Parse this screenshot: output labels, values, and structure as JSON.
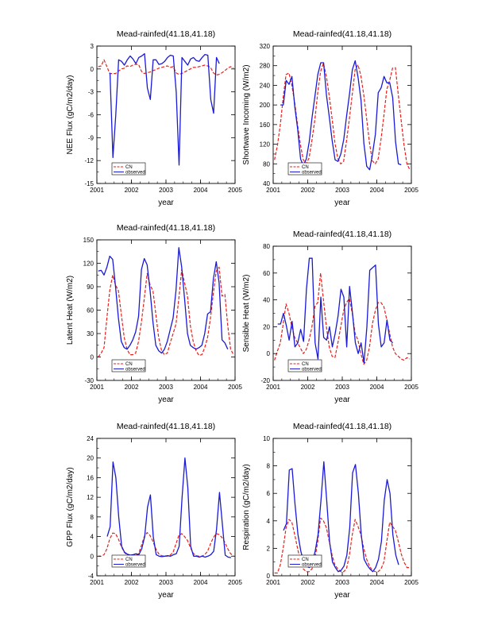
{
  "colors": {
    "cn": "#e8201a",
    "observed": "#1a1ad6",
    "axis": "#000000"
  },
  "chart_data": [
    {
      "type": "line",
      "title": "Mead-rainfed(41.18,41.18)",
      "xlabel": "year",
      "ylabel": "NEE Flux (gC/m2/day)",
      "ylim": [
        -15,
        3
      ],
      "yticks": [
        3,
        0,
        -3,
        -6,
        -9,
        -12,
        -15
      ],
      "xlim": [
        2001,
        2005
      ],
      "xticks": [
        2001,
        2002,
        2003,
        2004,
        2005
      ],
      "legend": {
        "location": "bottom-left",
        "entries": [
          "CN",
          "observed"
        ]
      },
      "series": [
        {
          "name": "CN",
          "style": "dashed",
          "x_start": 2001.04,
          "x_step": 0.0833,
          "values": [
            0.3,
            0.4,
            1.2,
            0.3,
            -0.6,
            -0.6,
            -0.6,
            -0.3,
            0.0,
            0.1,
            0.4,
            0.3,
            0.5,
            0.6,
            0.6,
            -0.3,
            -0.6,
            -0.5,
            -0.4,
            -0.2,
            -0.1,
            0.1,
            0.2,
            0.3,
            0.4,
            0.2,
            0.3,
            -0.5,
            -0.7,
            -0.6,
            -0.4,
            -0.2,
            0.0,
            0.2,
            0.2,
            0.3,
            0.4,
            0.5,
            0.4,
            0.2,
            -0.5,
            -0.8,
            -0.7,
            -0.5,
            -0.2,
            0.1,
            0.3,
            0.1
          ]
        },
        {
          "name": "observed",
          "style": "solid",
          "x_start": 2001.38,
          "x_step": 0.0833,
          "values": [
            -0.5,
            -11.6,
            -6.0,
            1.2,
            1.0,
            0.5,
            1.2,
            1.7,
            1.3,
            0.7,
            1.5,
            1.7,
            2.0,
            -2.5,
            -4.0,
            1.2,
            1.2,
            0.6,
            0.7,
            1.0,
            1.5,
            1.8,
            1.7,
            -3.0,
            -12.6,
            1.5,
            1.0,
            0.5,
            1.3,
            1.5,
            1.1,
            1.0,
            1.5,
            1.9,
            1.8,
            -4.0,
            -5.8,
            1.5,
            0.7
          ]
        }
      ]
    },
    {
      "type": "line",
      "title": "Mead-rainfed(41.18,41.18)",
      "xlabel": "year",
      "ylabel": "Shortwave Incoming (W/m2)",
      "ylim": [
        40,
        320
      ],
      "yticks": [
        320,
        280,
        240,
        200,
        160,
        120,
        80,
        40
      ],
      "xlim": [
        2001,
        2005
      ],
      "xticks": [
        2001,
        2002,
        2003,
        2004,
        2005
      ],
      "legend": {
        "location": "bottom-left",
        "entries": [
          "CN",
          "observed"
        ]
      },
      "series": [
        {
          "name": "CN",
          "style": "dashed",
          "x_start": 2001.04,
          "x_step": 0.0833,
          "values": [
            88,
            118,
            160,
            215,
            262,
            265,
            240,
            205,
            160,
            118,
            88,
            80,
            92,
            128,
            170,
            225,
            268,
            285,
            258,
            218,
            172,
            122,
            90,
            80,
            85,
            126,
            172,
            222,
            272,
            282,
            260,
            220,
            172,
            122,
            86,
            80,
            90,
            130,
            178,
            232,
            250,
            275,
            276,
            220,
            168,
            118,
            80,
            68
          ]
        },
        {
          "name": "observed",
          "style": "solid",
          "x_start": 2001.21,
          "x_step": 0.0833,
          "values": [
            200,
            200,
            250,
            242,
            258,
            195,
            150,
            90,
            76,
            90,
            125,
            175,
            218,
            262,
            286,
            286,
            220,
            175,
            126,
            88,
            85,
            100,
            130,
            178,
            222,
            272,
            290,
            255,
            210,
            122,
            75,
            68,
            100,
            140,
            225,
            235,
            258,
            245,
            245,
            215,
            125,
            80,
            78
          ]
        }
      ]
    },
    {
      "type": "line",
      "title": "Mead-rainfed(41.18,41.18)",
      "xlabel": "year",
      "ylabel": "Latent Heat (W/m2)",
      "ylim": [
        -30,
        150
      ],
      "yticks": [
        150,
        120,
        90,
        60,
        30,
        0,
        -30
      ],
      "xlim": [
        2001,
        2005
      ],
      "xticks": [
        2001,
        2002,
        2003,
        2004,
        2005
      ],
      "legend": {
        "location": "bottom-left",
        "entries": [
          "CN",
          "observed"
        ]
      },
      "series": [
        {
          "name": "CN",
          "style": "dashed",
          "x_start": 2001.04,
          "x_step": 0.0833,
          "values": [
            0,
            5,
            12,
            50,
            85,
            105,
            92,
            85,
            55,
            25,
            10,
            3,
            3,
            5,
            20,
            45,
            75,
            107,
            92,
            85,
            55,
            25,
            8,
            3,
            5,
            18,
            30,
            42,
            75,
            112,
            95,
            78,
            40,
            20,
            8,
            2,
            3,
            12,
            25,
            50,
            82,
            110,
            115,
            78,
            80,
            40,
            10,
            3
          ]
        },
        {
          "name": "observed",
          "style": "solid",
          "x_start": 2001.04,
          "x_step": 0.0833,
          "values": [
            110,
            111,
            105,
            115,
            129,
            125,
            90,
            50,
            20,
            12,
            10,
            15,
            22,
            32,
            52,
            112,
            126,
            118,
            85,
            45,
            15,
            8,
            5,
            10,
            20,
            35,
            50,
            85,
            140,
            115,
            75,
            30,
            15,
            12,
            10,
            12,
            15,
            30,
            55,
            58,
            100,
            122,
            95,
            22,
            18,
            10
          ]
        }
      ]
    },
    {
      "type": "line",
      "title": "Mead-rainfed(41.18,41.18)",
      "xlabel": "year",
      "ylabel": "Sensible Heat (W/m2)",
      "ylim": [
        -20,
        80
      ],
      "yticks": [
        80,
        60,
        40,
        20,
        0,
        -20
      ],
      "xlim": [
        2001,
        2005
      ],
      "xticks": [
        2001,
        2002,
        2003,
        2004,
        2005
      ],
      "legend": {
        "location": "bottom-left",
        "entries": [
          "CN",
          "observed"
        ]
      },
      "series": [
        {
          "name": "CN",
          "style": "dashed",
          "x_start": 2001.04,
          "x_step": 0.0833,
          "values": [
            -5,
            2,
            8,
            22,
            37,
            30,
            20,
            12,
            8,
            4,
            0,
            3,
            10,
            20,
            35,
            38,
            60,
            40,
            20,
            5,
            -2,
            -3,
            8,
            20,
            32,
            38,
            41,
            30,
            15,
            10,
            0,
            -8,
            -5,
            5,
            22,
            32,
            38,
            38,
            35,
            25,
            15,
            5,
            0,
            -2,
            -4,
            -5,
            -3,
            -4
          ]
        },
        {
          "name": "observed",
          "style": "solid",
          "x_start": 2001.13,
          "x_step": 0.0833,
          "values": [
            22,
            22,
            30,
            21,
            10,
            24,
            5,
            8,
            18,
            9,
            48,
            71,
            71,
            8,
            -4,
            42,
            12,
            10,
            20,
            5,
            15,
            28,
            48,
            42,
            5,
            50,
            30,
            8,
            0,
            8,
            -7,
            20,
            62,
            64,
            66,
            22,
            5,
            8,
            25,
            10,
            8
          ]
        }
      ]
    },
    {
      "type": "line",
      "title": "Mead-rainfed(41.18,41.18)",
      "xlabel": "year",
      "ylabel": "GPP Flux (gC/m2/day)",
      "ylim": [
        -4,
        24
      ],
      "yticks": [
        24,
        20,
        16,
        12,
        8,
        4,
        0,
        -4
      ],
      "xlim": [
        2001,
        2005
      ],
      "xticks": [
        2001,
        2002,
        2003,
        2004,
        2005
      ],
      "legend": {
        "location": "bottom-left",
        "entries": [
          "CN",
          "observed"
        ]
      },
      "series": [
        {
          "name": "CN",
          "style": "dashed",
          "x_start": 2001.04,
          "x_step": 0.0833,
          "values": [
            0,
            0,
            0.3,
            1.5,
            3.5,
            4.7,
            4.6,
            3.5,
            2.0,
            0.8,
            0.2,
            0.0,
            0.0,
            0.1,
            0.5,
            2.2,
            4.0,
            4.8,
            4.2,
            3.0,
            1.5,
            0.5,
            0.1,
            0.0,
            0.0,
            0.2,
            0.8,
            2.5,
            4.2,
            4.6,
            4.0,
            3.2,
            1.8,
            0.6,
            0.1,
            0.0,
            0.0,
            0.3,
            1.0,
            2.5,
            3.8,
            4.6,
            4.4,
            3.8,
            2.8,
            1.5,
            0.5,
            0.1
          ]
        },
        {
          "name": "observed",
          "style": "solid",
          "x_start": 2001.3,
          "x_step": 0.0833,
          "values": [
            4.0,
            6.0,
            19.2,
            16.0,
            8.0,
            2.0,
            0.8,
            0.4,
            0.2,
            0.3,
            0.5,
            0.3,
            1.5,
            4.0,
            10.0,
            12.5,
            4.0,
            0.3,
            0.0,
            -0.1,
            0.0,
            0.1,
            0.0,
            0.3,
            0.5,
            2.0,
            12.0,
            20.0,
            14.0,
            2.0,
            0.0,
            0.0,
            -0.2,
            0.0,
            -0.2,
            0.0,
            0.3,
            1.0,
            5.5,
            13.0,
            6.5,
            0.2,
            -0.2,
            -0.3
          ]
        }
      ]
    },
    {
      "type": "line",
      "title": "Mead-rainfed(41.18,41.18)",
      "xlabel": "year",
      "ylabel": "Respiration (gC/m2/day)",
      "ylim": [
        0,
        10
      ],
      "yticks": [
        10,
        8,
        6,
        4,
        2,
        0
      ],
      "xlim": [
        2001,
        2005
      ],
      "xticks": [
        2001,
        2002,
        2003,
        2004,
        2005
      ],
      "legend": {
        "location": "bottom-left",
        "entries": [
          "CN",
          "observed"
        ]
      },
      "series": [
        {
          "name": "CN",
          "style": "dashed",
          "x_start": 2001.04,
          "x_step": 0.0833,
          "values": [
            0.2,
            0.2,
            0.8,
            2.0,
            3.5,
            4.1,
            3.9,
            3.0,
            2.0,
            1.0,
            0.5,
            0.3,
            0.3,
            0.5,
            1.2,
            2.5,
            4.2,
            4.0,
            3.5,
            2.5,
            1.5,
            0.8,
            0.5,
            0.3,
            0.3,
            0.5,
            1.5,
            3.0,
            4.1,
            3.6,
            3.0,
            2.0,
            1.2,
            0.7,
            0.4,
            0.3,
            0.3,
            0.5,
            1.0,
            2.5,
            3.9,
            3.6,
            3.3,
            2.5,
            1.6,
            1.0,
            0.6,
            0.6
          ]
        },
        {
          "name": "observed",
          "style": "solid",
          "x_start": 2001.3,
          "x_step": 0.0833,
          "values": [
            3.3,
            3.8,
            7.7,
            7.8,
            5.2,
            3.0,
            1.8,
            1.0,
            0.7,
            0.6,
            1.0,
            1.8,
            3.0,
            5.5,
            8.3,
            5.5,
            2.5,
            1.0,
            0.6,
            0.3,
            0.4,
            0.7,
            1.5,
            3.5,
            7.5,
            8.1,
            6.0,
            3.0,
            1.2,
            0.8,
            0.5,
            0.3,
            0.6,
            1.2,
            2.5,
            5.5,
            7.0,
            6.0,
            3.0,
            1.5,
            0.8
          ]
        }
      ]
    }
  ]
}
